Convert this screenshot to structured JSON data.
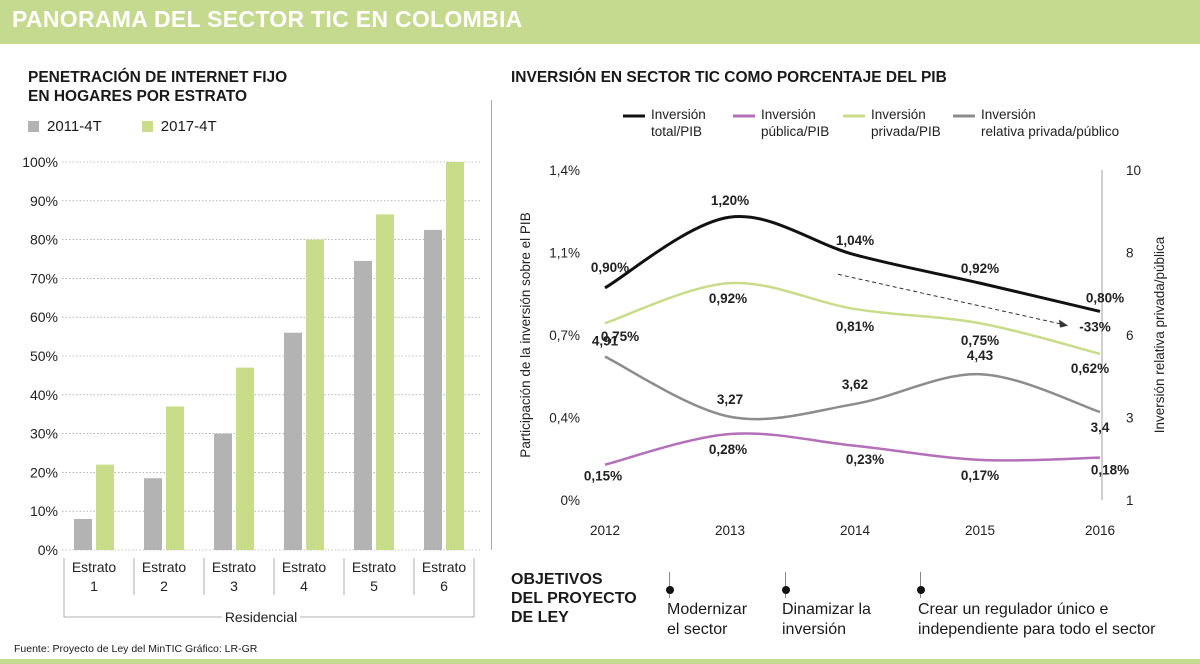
{
  "title": "PANORAMA DEL SECTOR TIC EN COLOMBIA",
  "colors": {
    "gray": "#b3b3b3",
    "green": "#c8dc8a",
    "banner": "#c5d98f",
    "total": "#111111",
    "publica": "#b36fb8",
    "privada": "#c8dc8a",
    "relativa": "#8c8c8c"
  },
  "source": "Fuente: Proyecto de Ley del MinTIC     Gráfico: LR-GR",
  "chart_data": [
    {
      "type": "bar",
      "title": "PENETRACIÓN DE INTERNET FIJO EN HOGARES POR ESTRATO",
      "title_lines": [
        "PENETRACIÓN DE INTERNET FIJO",
        "EN HOGARES POR ESTRATO"
      ],
      "categories": [
        [
          "Estrato",
          "1"
        ],
        [
          "Estrato",
          "2"
        ],
        [
          "Estrato",
          "3"
        ],
        [
          "Estrato",
          "4"
        ],
        [
          "Estrato",
          "5"
        ],
        [
          "Estrato",
          "6"
        ]
      ],
      "group_label": "Residencial",
      "yticks": [
        "0%",
        "10%",
        "20%",
        "30%",
        "40%",
        "50%",
        "60%",
        "70%",
        "80%",
        "90%",
        "100%"
      ],
      "ylim": [
        0,
        100
      ],
      "series": [
        {
          "name": "2011-4T",
          "values": [
            8,
            18.5,
            30,
            56,
            74.5,
            82.5
          ]
        },
        {
          "name": "2017-4T",
          "values": [
            22,
            37,
            47,
            80,
            86.5,
            100
          ]
        }
      ]
    },
    {
      "type": "line",
      "title": "INVERSIÓN EN SECTOR TIC COMO PORCENTAJE DEL PIB",
      "x": [
        "2012",
        "2013",
        "2014",
        "2015",
        "2016"
      ],
      "ylabel_left": "Participación de la inversión sobre el PIB",
      "ylabel_right": "Inversión relativa privada/pública",
      "yticks_left": [
        "0%",
        "0,4%",
        "0,7%",
        "1,1%",
        "1,4%"
      ],
      "yticks_right": [
        "1",
        "3",
        "6",
        "8",
        "10"
      ],
      "ylim_left": [
        0,
        1.4
      ],
      "ylim_right": [
        1,
        10
      ],
      "series": [
        {
          "name": [
            "Inversión",
            "total/PIB"
          ],
          "axis": "left",
          "values": [
            0.9,
            1.2,
            1.04,
            0.92,
            0.8
          ],
          "labels": [
            "0,90%",
            "1,20%",
            "1,04%",
            "0,92%",
            "0,80%"
          ]
        },
        {
          "name": [
            "Inversión",
            "pública/PIB"
          ],
          "axis": "left",
          "values": [
            0.15,
            0.28,
            0.23,
            0.17,
            0.18
          ],
          "labels": [
            "0,15%",
            "0,28%",
            "0,23%",
            "0,17%",
            "0,18%"
          ]
        },
        {
          "name": [
            "Inversión",
            "privada/PIB"
          ],
          "axis": "left",
          "values": [
            0.75,
            0.92,
            0.81,
            0.75,
            0.62
          ],
          "labels": [
            "0,75%",
            "0,92%",
            "0,81%",
            "0,75%",
            "0,62%"
          ]
        },
        {
          "name": [
            "Inversión",
            "relativa privada/público"
          ],
          "axis": "right",
          "values": [
            4.91,
            3.27,
            3.62,
            4.43,
            3.4
          ],
          "labels": [
            "4,91",
            "3,27",
            "3,62",
            "4,43",
            "3,4"
          ]
        }
      ],
      "annotation": "-33%"
    }
  ],
  "objectives": {
    "title_lines": [
      "OBJETIVOS",
      "DEL  PROYECTO",
      "DE LEY"
    ],
    "items": [
      {
        "lines": [
          "Modernizar",
          "el sector"
        ]
      },
      {
        "lines": [
          "Dinamizar la",
          "inversión"
        ]
      },
      {
        "lines": [
          "Crear un regulador único e",
          "independiente para todo el sector"
        ]
      }
    ]
  }
}
